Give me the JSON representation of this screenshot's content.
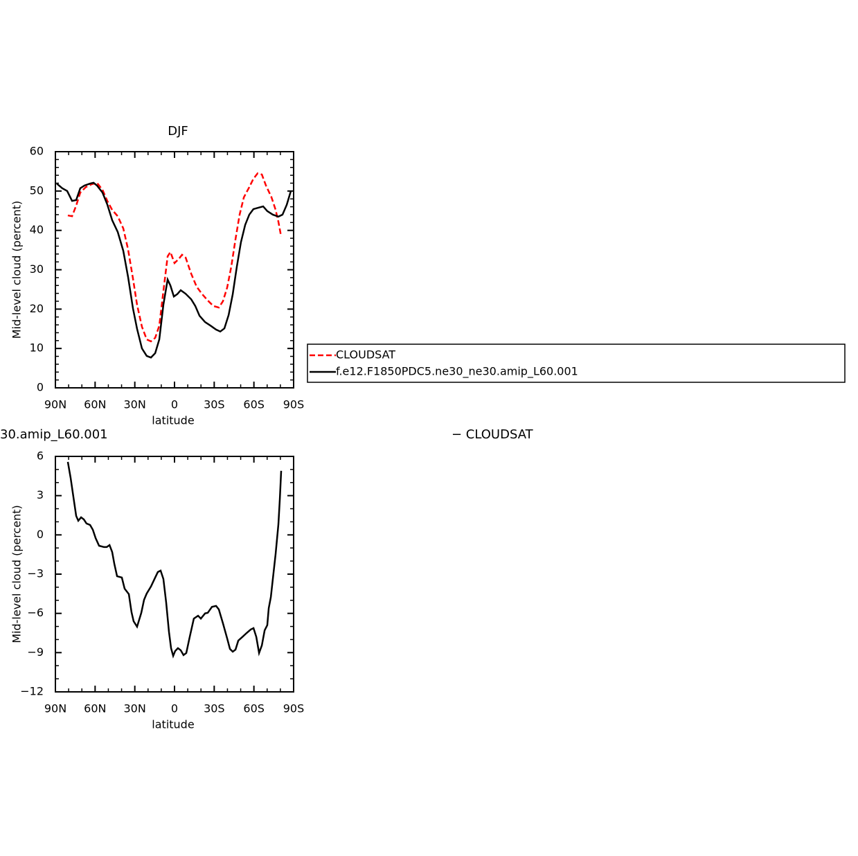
{
  "chart_data": [
    {
      "type": "line",
      "title": "DJF",
      "xlabel": "latitude",
      "ylabel": "Mid-level cloud (percent)",
      "xlim": [
        90,
        -90
      ],
      "xticks": [
        {
          "value": 90,
          "label": "90N"
        },
        {
          "value": 60,
          "label": "60N"
        },
        {
          "value": 30,
          "label": "30N"
        },
        0,
        {
          "value": -30,
          "label": "30S"
        },
        {
          "value": -60,
          "label": "60S"
        },
        {
          "value": -90,
          "label": "90S"
        }
      ],
      "ylim": [
        0,
        60
      ],
      "yticks": [
        0,
        10,
        20,
        30,
        40,
        50,
        60
      ],
      "series": [
        {
          "name": "CLOUDSAT",
          "color": "#ff0000",
          "linestyle": "dashed",
          "x": [
            80.6,
            77.4,
            74.3,
            71.2,
            67,
            62.8,
            58.6,
            54.4,
            50.8,
            47.1,
            42.9,
            38.7,
            35.1,
            31.4,
            28.3,
            24.6,
            21,
            17.8,
            14.6,
            11.5,
            8.4,
            5.2,
            3.1,
            0,
            -3.1,
            -5.7,
            -8.4,
            -12.6,
            -16.7,
            -20.9,
            -25.1,
            -29.3,
            -33.5,
            -36.6,
            -39.8,
            -42.9,
            -46.1,
            -49.2,
            -52.4,
            -56.5,
            -59.6,
            -62.8,
            -66,
            -69.1,
            -73.3,
            -76.4,
            -78.5,
            -80.6
          ],
          "values": [
            43.8,
            43.6,
            46.3,
            49.6,
            51,
            51.7,
            52.1,
            50.3,
            47.5,
            45.2,
            43.6,
            40.5,
            35.2,
            27.8,
            21.1,
            15.5,
            12.3,
            11.8,
            12.7,
            15.8,
            24.6,
            33.4,
            34.5,
            31.7,
            32.7,
            33.8,
            33.1,
            29,
            25.7,
            23.8,
            22.2,
            20.8,
            20.4,
            22,
            25.5,
            30.8,
            37.8,
            44,
            48.4,
            51,
            53.1,
            54.5,
            54.2,
            51.4,
            48.4,
            45.2,
            42.2,
            38.4
          ]
        },
        {
          "name": "f.e12.F1850PDC5.ne30_ne30.amip_L60.001",
          "color": "#000000",
          "linestyle": "solid",
          "x": [
            89,
            84.8,
            81.1,
            77.4,
            74.3,
            71.2,
            68,
            63.8,
            61.2,
            58.6,
            54.4,
            50.8,
            47.1,
            42.9,
            38.7,
            35.1,
            31.4,
            28.3,
            24.6,
            21,
            17.8,
            14.6,
            11.5,
            8.4,
            5.2,
            3.1,
            0.5,
            -2.1,
            -4.7,
            -8.4,
            -12.6,
            -15.7,
            -18.9,
            -23.1,
            -27.2,
            -31.4,
            -34.6,
            -37.7,
            -40.9,
            -44,
            -47.1,
            -50.2,
            -53.4,
            -56.5,
            -59.6,
            -63.8,
            -67,
            -70.1,
            -74.3,
            -78.5,
            -81.6,
            -84.8,
            -87.9
          ],
          "values": [
            51.9,
            50.7,
            50,
            47.5,
            47.7,
            50.7,
            51.4,
            51.9,
            52.1,
            51.4,
            49.6,
            46.6,
            42.6,
            39.6,
            34.8,
            28.2,
            20.2,
            15,
            10,
            8.1,
            7.7,
            8.8,
            12.3,
            21.1,
            27.5,
            26,
            23.2,
            23.8,
            24.8,
            23.9,
            22.5,
            20.8,
            18.3,
            16.7,
            15.8,
            14.8,
            14.3,
            15.1,
            18.5,
            23.8,
            30.8,
            37,
            41.4,
            44,
            45.4,
            45.8,
            46.1,
            44.9,
            44,
            43.5,
            44,
            46.5,
            50
          ]
        }
      ]
    },
    {
      "type": "line",
      "title": "30.amip_L60.001",
      "annotations": [
        "− CLOUDSAT"
      ],
      "xlabel": "latitude",
      "ylabel": "Mid-level cloud (percent)",
      "xlim": [
        90,
        -90
      ],
      "xticks": [
        {
          "value": 90,
          "label": "90N"
        },
        {
          "value": 60,
          "label": "60N"
        },
        {
          "value": 30,
          "label": "30N"
        },
        0,
        {
          "value": -30,
          "label": "30S"
        },
        {
          "value": -60,
          "label": "60S"
        },
        {
          "value": -90,
          "label": "90S"
        }
      ],
      "ylim": [
        -12,
        6
      ],
      "yticks": [
        {
          "value": -12,
          "label": "−12"
        },
        {
          "value": -9,
          "label": "−9"
        },
        {
          "value": -6,
          "label": "−6"
        },
        {
          "value": -3,
          "label": "−3"
        },
        0,
        3,
        6
      ],
      "color": "#000000",
      "x": [
        80.6,
        78.5,
        76.4,
        74.3,
        72.7,
        70.6,
        68.5,
        66.5,
        63.8,
        61.7,
        59.6,
        57,
        53.3,
        51.2,
        49.1,
        47.1,
        45.5,
        43.4,
        39.8,
        37.7,
        34.5,
        32.5,
        30.9,
        28.3,
        25.1,
        23,
        21,
        17.8,
        14.6,
        12.6,
        10.5,
        8.4,
        6.3,
        4.2,
        2.6,
        1,
        -0.5,
        -2.6,
        -4.7,
        -6.8,
        -8.9,
        -11.5,
        -14.6,
        -17.8,
        -19.9,
        -23.1,
        -25.1,
        -28.3,
        -31.4,
        -33.5,
        -36.6,
        -39.8,
        -41.9,
        -44,
        -46.1,
        -48.2,
        -51.3,
        -54.5,
        -57.6,
        -59.7,
        -61.8,
        -63.9,
        -66,
        -68.1,
        -70.1,
        -71.2,
        -72.8,
        -74.3,
        -76.4,
        -78.5,
        -79.6,
        -80.6
      ],
      "values": [
        5.58,
        4.36,
        2.9,
        1.45,
        1.08,
        1.34,
        1.18,
        0.87,
        0.76,
        0.39,
        -0.25,
        -0.83,
        -0.93,
        -0.93,
        -0.78,
        -1.31,
        -2.2,
        -3.16,
        -3.26,
        -4.11,
        -4.53,
        -5.9,
        -6.6,
        -7.02,
        -5.96,
        -4.96,
        -4.48,
        -3.95,
        -3.26,
        -2.84,
        -2.73,
        -3.37,
        -5.17,
        -7.4,
        -8.66,
        -9.25,
        -8.88,
        -8.66,
        -8.82,
        -9.19,
        -9.03,
        -7.8,
        -6.4,
        -6.18,
        -6.4,
        -6.0,
        -5.96,
        -5.5,
        -5.43,
        -5.7,
        -6.76,
        -7.92,
        -8.72,
        -8.93,
        -8.77,
        -8.08,
        -7.8,
        -7.5,
        -7.23,
        -7.13,
        -7.8,
        -9.03,
        -8.45,
        -7.3,
        -6.9,
        -5.6,
        -4.75,
        -3.37,
        -1.46,
        0.81,
        2.77,
        4.9
      ]
    }
  ]
}
